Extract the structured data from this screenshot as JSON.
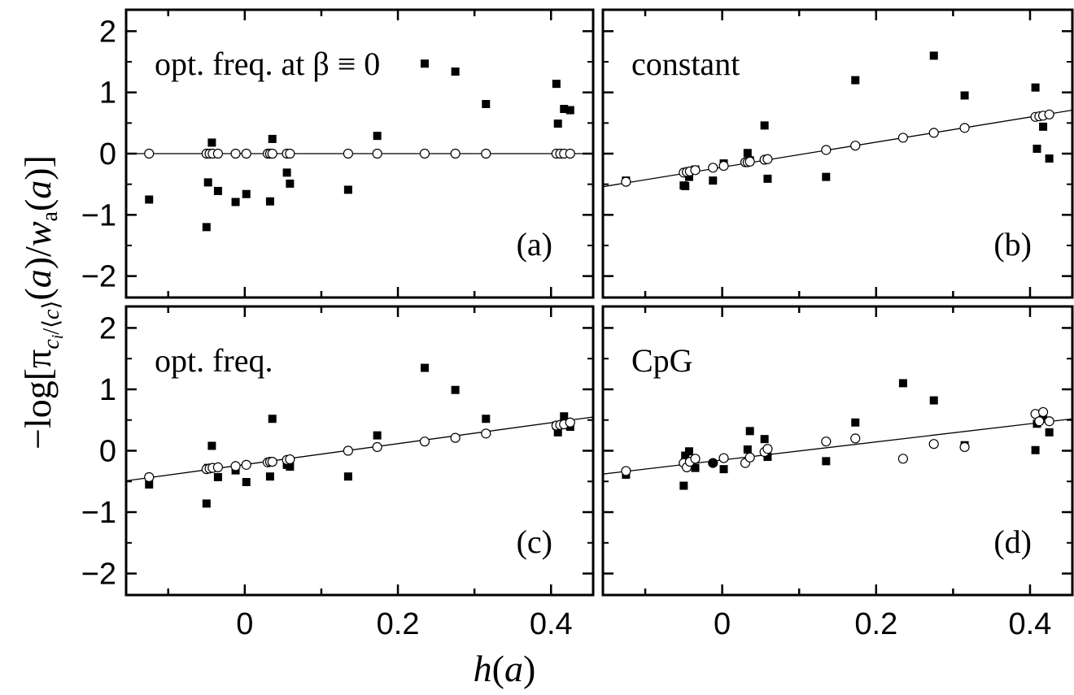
{
  "chart_data": {
    "type": "scatter",
    "xlabel": "h(a)",
    "ylabel": "−log[π_{c_i/⟨c⟩}(a)/w_a(a)]",
    "xlim": [
      -0.155,
      0.455
    ],
    "ylim": [
      -2.35,
      2.35
    ],
    "x_ticks": [
      -0.1,
      0,
      0.1,
      0.2,
      0.3,
      0.4
    ],
    "x_tick_labels": [
      "0",
      "0.2",
      "0.4"
    ],
    "y_ticks": [
      -2,
      -1,
      0,
      1,
      2
    ],
    "y_tick_labels": [
      "−2",
      "−1",
      "0",
      "1",
      "2"
    ],
    "grid": false,
    "panels": [
      {
        "title": "opt. freq. at β ≡ 0",
        "tag": "(a)",
        "fit_line": {
          "x": [
            -0.155,
            0.455
          ],
          "y": [
            0,
            0
          ]
        },
        "series": [
          {
            "marker": "filled-square",
            "points": [
              [
                -0.125,
                -0.75
              ],
              [
                -0.05,
                -1.2
              ],
              [
                -0.048,
                -0.47
              ],
              [
                -0.043,
                0.18
              ],
              [
                -0.035,
                -0.61
              ],
              [
                -0.012,
                -0.79
              ],
              [
                0.002,
                -0.66
              ],
              [
                0.033,
                -0.78
              ],
              [
                0.036,
                0.24
              ],
              [
                0.055,
                -0.31
              ],
              [
                0.059,
                -0.49
              ],
              [
                0.135,
                -0.59
              ],
              [
                0.173,
                0.29
              ],
              [
                0.235,
                1.47
              ],
              [
                0.275,
                1.34
              ],
              [
                0.315,
                0.81
              ],
              [
                0.407,
                1.14
              ],
              [
                0.409,
                0.49
              ],
              [
                0.417,
                0.73
              ],
              [
                0.425,
                0.71
              ]
            ]
          },
          {
            "marker": "open-circle",
            "points": [
              [
                -0.125,
                0
              ],
              [
                -0.05,
                0
              ],
              [
                -0.046,
                0
              ],
              [
                -0.042,
                0
              ],
              [
                -0.035,
                0
              ],
              [
                -0.012,
                0
              ],
              [
                0.002,
                0
              ],
              [
                0.03,
                0
              ],
              [
                0.033,
                0
              ],
              [
                0.036,
                0
              ],
              [
                0.055,
                0
              ],
              [
                0.059,
                0
              ],
              [
                0.135,
                0
              ],
              [
                0.173,
                0
              ],
              [
                0.235,
                0
              ],
              [
                0.275,
                0
              ],
              [
                0.315,
                0
              ],
              [
                0.407,
                0
              ],
              [
                0.412,
                0
              ],
              [
                0.417,
                0
              ],
              [
                0.425,
                0
              ]
            ]
          }
        ]
      },
      {
        "title": "constant",
        "tag": "(b)",
        "fit_line": {
          "x": [
            -0.155,
            0.455
          ],
          "y": [
            -0.54,
            0.71
          ]
        },
        "series": [
          {
            "marker": "filled-square",
            "points": [
              [
                -0.125,
                -0.44
              ],
              [
                -0.05,
                -0.52
              ],
              [
                -0.048,
                -0.53
              ],
              [
                -0.043,
                -0.38
              ],
              [
                -0.035,
                -0.26
              ],
              [
                -0.012,
                -0.44
              ],
              [
                0.002,
                -0.16
              ],
              [
                0.033,
                0.01
              ],
              [
                0.036,
                -0.11
              ],
              [
                0.055,
                0.46
              ],
              [
                0.059,
                -0.41
              ],
              [
                0.135,
                -0.38
              ],
              [
                0.173,
                1.2
              ],
              [
                0.275,
                1.6
              ],
              [
                0.315,
                0.95
              ],
              [
                0.407,
                1.08
              ],
              [
                0.409,
                0.08
              ],
              [
                0.417,
                0.44
              ],
              [
                0.425,
                -0.08
              ]
            ]
          },
          {
            "marker": "open-circle",
            "points": [
              [
                -0.125,
                -0.46
              ],
              [
                -0.05,
                -0.31
              ],
              [
                -0.046,
                -0.3
              ],
              [
                -0.042,
                -0.29
              ],
              [
                -0.035,
                -0.27
              ],
              [
                -0.012,
                -0.23
              ],
              [
                0.002,
                -0.2
              ],
              [
                0.03,
                -0.14
              ],
              [
                0.033,
                -0.14
              ],
              [
                0.036,
                -0.13
              ],
              [
                0.055,
                -0.1
              ],
              [
                0.059,
                -0.09
              ],
              [
                0.135,
                0.06
              ],
              [
                0.173,
                0.13
              ],
              [
                0.235,
                0.26
              ],
              [
                0.275,
                0.34
              ],
              [
                0.315,
                0.42
              ],
              [
                0.407,
                0.6
              ],
              [
                0.412,
                0.61
              ],
              [
                0.417,
                0.62
              ],
              [
                0.425,
                0.64
              ]
            ]
          }
        ]
      },
      {
        "title": "opt. freq.",
        "tag": "(c)",
        "fit_line": {
          "x": [
            -0.155,
            0.455
          ],
          "y": [
            -0.49,
            0.55
          ]
        },
        "series": [
          {
            "marker": "filled-square",
            "points": [
              [
                -0.125,
                -0.55
              ],
              [
                -0.05,
                -0.86
              ],
              [
                -0.048,
                -0.28
              ],
              [
                -0.043,
                0.08
              ],
              [
                -0.035,
                -0.43
              ],
              [
                -0.012,
                -0.32
              ],
              [
                0.002,
                -0.51
              ],
              [
                0.033,
                -0.42
              ],
              [
                0.036,
                0.52
              ],
              [
                0.055,
                -0.23
              ],
              [
                0.059,
                -0.26
              ],
              [
                0.135,
                -0.42
              ],
              [
                0.173,
                0.25
              ],
              [
                0.235,
                1.35
              ],
              [
                0.275,
                0.99
              ],
              [
                0.315,
                0.52
              ],
              [
                0.407,
                0.41
              ],
              [
                0.409,
                0.3
              ],
              [
                0.417,
                0.56
              ],
              [
                0.425,
                0.39
              ]
            ]
          },
          {
            "marker": "open-circle",
            "points": [
              [
                -0.125,
                -0.43
              ],
              [
                -0.05,
                -0.3
              ],
              [
                -0.046,
                -0.29
              ],
              [
                -0.042,
                -0.28
              ],
              [
                -0.035,
                -0.27
              ],
              [
                -0.012,
                -0.25
              ],
              [
                0.002,
                -0.23
              ],
              [
                0.03,
                -0.19
              ],
              [
                0.033,
                -0.18
              ],
              [
                0.036,
                -0.18
              ],
              [
                0.055,
                -0.15
              ],
              [
                0.059,
                -0.14
              ],
              [
                0.135,
                0.0
              ],
              [
                0.173,
                0.06
              ],
              [
                0.235,
                0.15
              ],
              [
                0.275,
                0.21
              ],
              [
                0.315,
                0.28
              ],
              [
                0.407,
                0.41
              ],
              [
                0.412,
                0.42
              ],
              [
                0.417,
                0.43
              ],
              [
                0.425,
                0.46
              ]
            ]
          }
        ]
      },
      {
        "title": "CpG",
        "tag": "(d)",
        "fit_line": {
          "x": [
            -0.155,
            0.455
          ],
          "y": [
            -0.38,
            0.52
          ]
        },
        "series": [
          {
            "marker": "filled-square",
            "points": [
              [
                -0.125,
                -0.39
              ],
              [
                -0.05,
                -0.57
              ],
              [
                -0.048,
                -0.08
              ],
              [
                -0.043,
                -0.01
              ],
              [
                -0.035,
                -0.28
              ],
              [
                0.002,
                -0.3
              ],
              [
                0.033,
                0.02
              ],
              [
                0.036,
                0.32
              ],
              [
                0.055,
                0.19
              ],
              [
                0.059,
                -0.1
              ],
              [
                0.135,
                -0.17
              ],
              [
                0.173,
                0.46
              ],
              [
                0.235,
                1.1
              ],
              [
                0.275,
                0.82
              ],
              [
                0.315,
                0.09
              ],
              [
                0.407,
                0.01
              ],
              [
                0.409,
                0.44
              ],
              [
                0.417,
                0.56
              ],
              [
                0.425,
                0.3
              ]
            ]
          },
          {
            "marker": "open-circle",
            "points": [
              [
                -0.125,
                -0.33
              ],
              [
                -0.05,
                -0.2
              ],
              [
                -0.046,
                -0.27
              ],
              [
                -0.042,
                -0.18
              ],
              [
                -0.035,
                -0.13
              ],
              [
                0.002,
                -0.12
              ],
              [
                0.03,
                -0.2
              ],
              [
                0.036,
                -0.11
              ],
              [
                0.055,
                -0.02
              ],
              [
                0.059,
                0.03
              ],
              [
                0.135,
                0.15
              ],
              [
                0.173,
                0.2
              ],
              [
                0.235,
                -0.13
              ],
              [
                0.275,
                0.11
              ],
              [
                0.315,
                0.06
              ],
              [
                0.407,
                0.6
              ],
              [
                0.412,
                0.48
              ],
              [
                0.417,
                0.63
              ],
              [
                0.425,
                0.48
              ]
            ]
          },
          {
            "marker": "filled-circle",
            "points": [
              [
                -0.012,
                -0.2
              ]
            ]
          }
        ]
      }
    ]
  }
}
